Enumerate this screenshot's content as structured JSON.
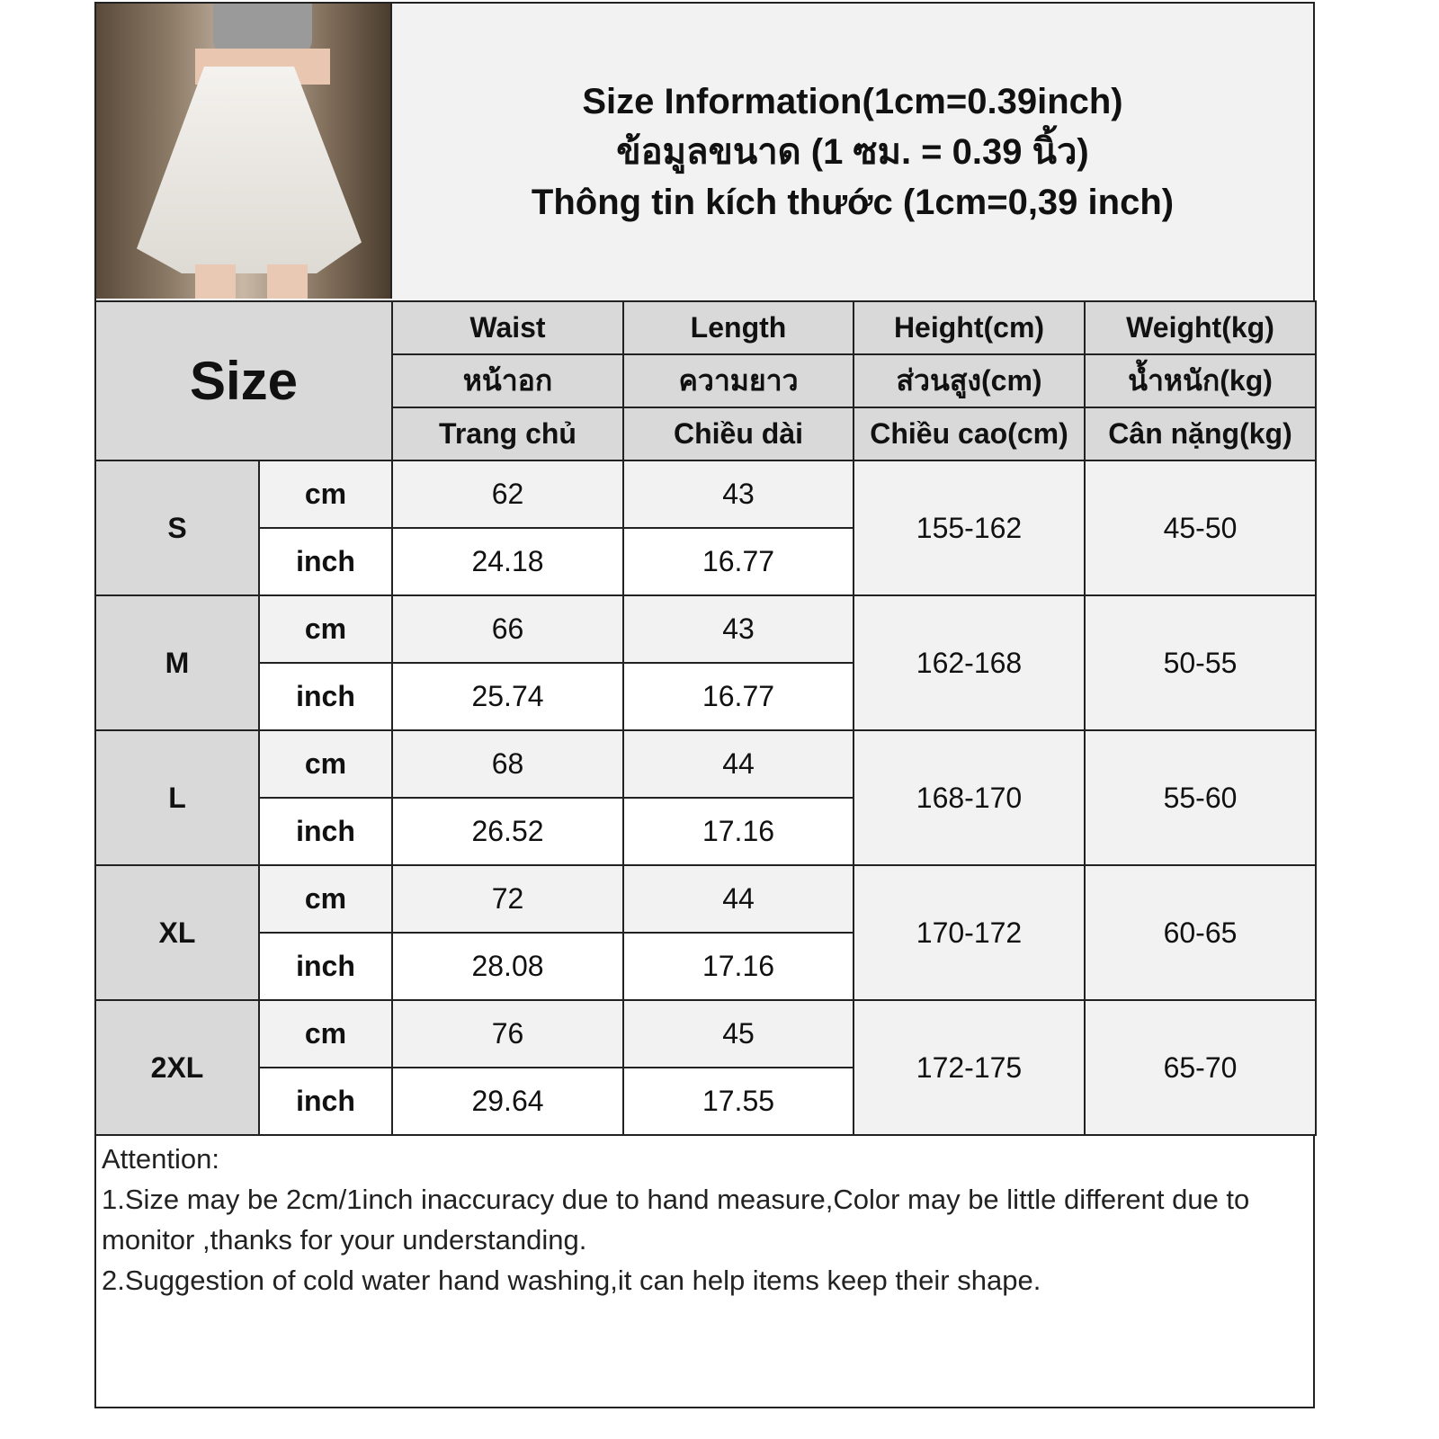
{
  "title": {
    "line1": "Size Information(1cm=0.39inch)",
    "line2": "ข้อมูลขนาด (1 ซม. = 0.39 นิ้ว)",
    "line3": "Thông tin kích thước (1cm=0,39 inch)"
  },
  "table": {
    "size_label": "Size",
    "headers": [
      {
        "en": "Waist",
        "th": "หน้าอก",
        "vi": "Trang chủ"
      },
      {
        "en": "Length",
        "th": "ความยาว",
        "vi": "Chiều dài"
      },
      {
        "en": "Height(cm)",
        "th": "ส่วนสูง(cm)",
        "vi": "Chiều cao(cm)"
      },
      {
        "en": "Weight(kg)",
        "th": "น้ำหนัก(kg)",
        "vi": "Cân nặng(kg)"
      }
    ],
    "unit_cm": "cm",
    "unit_inch": "inch",
    "rows": [
      {
        "size": "S",
        "waist_cm": "62",
        "length_cm": "43",
        "waist_inch": "24.18",
        "length_inch": "16.77",
        "height": "155-162",
        "weight": "45-50"
      },
      {
        "size": "M",
        "waist_cm": "66",
        "length_cm": "43",
        "waist_inch": "25.74",
        "length_inch": "16.77",
        "height": "162-168",
        "weight": "50-55"
      },
      {
        "size": "L",
        "waist_cm": "68",
        "length_cm": "44",
        "waist_inch": "26.52",
        "length_inch": "17.16",
        "height": "168-170",
        "weight": "55-60"
      },
      {
        "size": "XL",
        "waist_cm": "72",
        "length_cm": "44",
        "waist_inch": "28.08",
        "length_inch": "17.16",
        "height": "170-172",
        "weight": "60-65"
      },
      {
        "size": "2XL",
        "waist_cm": "76",
        "length_cm": "45",
        "waist_inch": "29.64",
        "length_inch": "17.55",
        "height": "172-175",
        "weight": "65-70"
      }
    ]
  },
  "notes": {
    "heading": "Attention:",
    "line1": "1.Size may be 2cm/1inch inaccuracy due to hand measure,Color may be little different due to monitor ,thanks for your understanding.",
    "line2": "2.Suggestion of cold water hand washing,it can help items keep their shape."
  },
  "colors": {
    "header_gray": "#d9d9d9",
    "light_gray": "#f2f2f2",
    "border": "#222222"
  }
}
